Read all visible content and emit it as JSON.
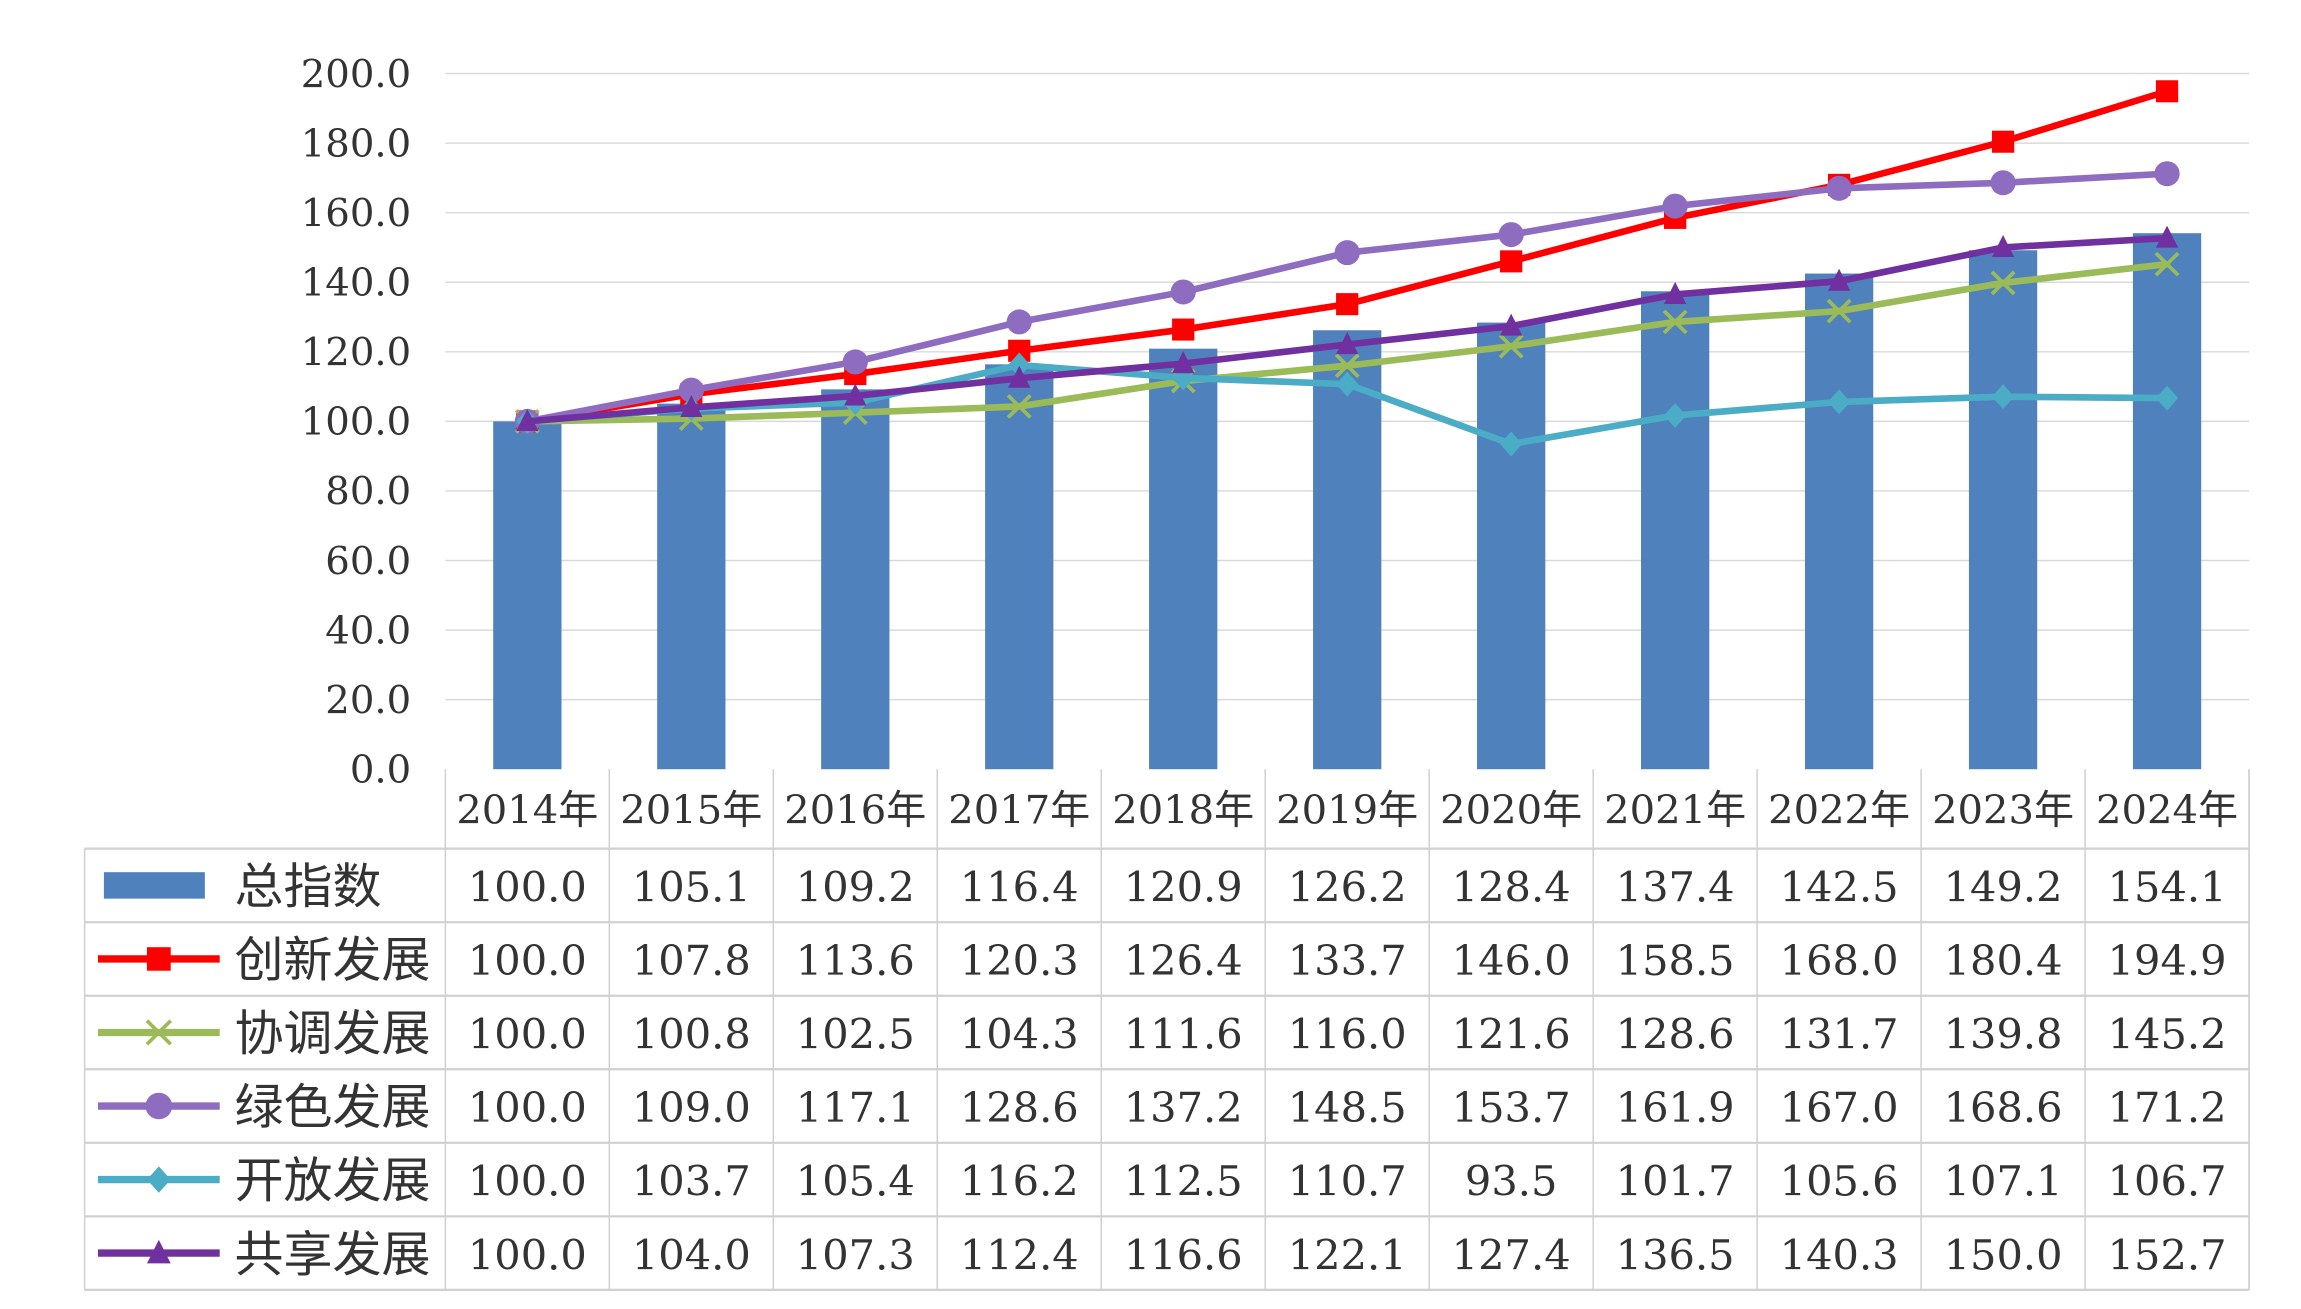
{
  "chart_data": {
    "type": "bar+line",
    "categories": [
      "2014年",
      "2015年",
      "2016年",
      "2017年",
      "2018年",
      "2019年",
      "2020年",
      "2021年",
      "2022年",
      "2023年",
      "2024年"
    ],
    "ylim": [
      0,
      200
    ],
    "yticks": [
      "0.0",
      "20.0",
      "40.0",
      "60.0",
      "80.0",
      "100.0",
      "120.0",
      "140.0",
      "160.0",
      "180.0",
      "200.0"
    ],
    "grid": true,
    "legend": "data-table",
    "series": [
      {
        "name": "总指数",
        "kind": "bar",
        "marker": "none",
        "color": "#4f81bd",
        "values": [
          100.0,
          105.1,
          109.2,
          116.4,
          120.9,
          126.2,
          128.4,
          137.4,
          142.5,
          149.2,
          154.1
        ]
      },
      {
        "name": "创新发展",
        "kind": "line",
        "marker": "square",
        "color": "#ff0000",
        "values": [
          100.0,
          107.8,
          113.6,
          120.3,
          126.4,
          133.7,
          146.0,
          158.5,
          168.0,
          180.4,
          194.9
        ]
      },
      {
        "name": "协调发展",
        "kind": "line",
        "marker": "x",
        "color": "#9bbb59",
        "values": [
          100.0,
          100.8,
          102.5,
          104.3,
          111.6,
          116.0,
          121.6,
          128.6,
          131.7,
          139.8,
          145.2
        ]
      },
      {
        "name": "绿色发展",
        "kind": "line",
        "marker": "circle",
        "color": "#8e6cc0",
        "values": [
          100.0,
          109.0,
          117.1,
          128.6,
          137.2,
          148.5,
          153.7,
          161.9,
          167.0,
          168.6,
          171.2
        ]
      },
      {
        "name": "开放发展",
        "kind": "line",
        "marker": "diamond",
        "color": "#4bacc6",
        "values": [
          100.0,
          103.7,
          105.4,
          116.2,
          112.5,
          110.7,
          93.5,
          101.7,
          105.6,
          107.1,
          106.7
        ]
      },
      {
        "name": "共享发展",
        "kind": "line",
        "marker": "triangle",
        "color": "#7030a0",
        "values": [
          100.0,
          104.0,
          107.3,
          112.4,
          116.6,
          122.1,
          127.4,
          136.5,
          140.3,
          150.0,
          152.7
        ]
      }
    ]
  }
}
